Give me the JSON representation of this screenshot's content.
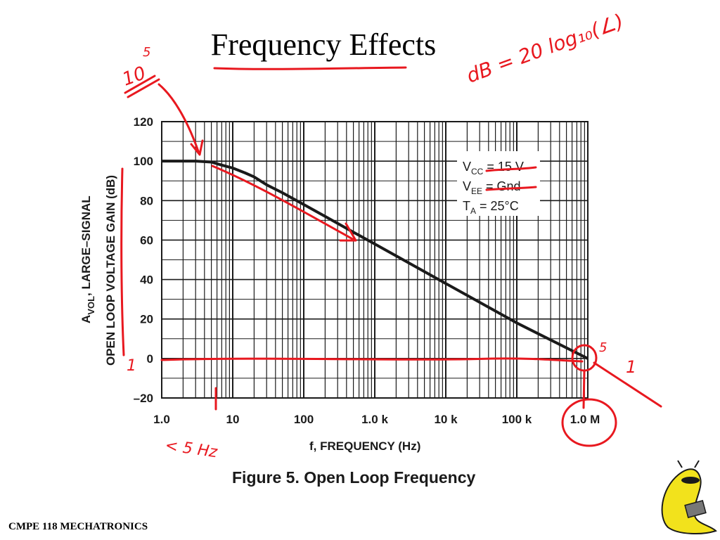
{
  "slide": {
    "title": "Frequency Effects",
    "footer": "CMPE 118 MECHATRONICS",
    "mascot_icon": "banana-slug-mascot-icon"
  },
  "chart_data": {
    "type": "line",
    "title": "Figure 5. Open Loop Frequency",
    "xlabel": "f, FREQUENCY (Hz)",
    "ylabel_line1_prefix": "A",
    "ylabel_line1_sub": "VOL",
    "ylabel_line1_rest": ", LARGE–SIGNAL",
    "ylabel_line2": "OPEN LOOP VOLTAGE GAIN (dB)",
    "x_scale": "log",
    "xlim": [
      1,
      1000000
    ],
    "ylim": [
      -20,
      120
    ],
    "grid": true,
    "x_ticks": [
      {
        "value": 1,
        "label": "1.0"
      },
      {
        "value": 10,
        "label": "10"
      },
      {
        "value": 100,
        "label": "100"
      },
      {
        "value": 1000,
        "label": "1.0 k"
      },
      {
        "value": 10000,
        "label": "10 k"
      },
      {
        "value": 100000,
        "label": "100 k"
      },
      {
        "value": 1000000,
        "label": "1.0 M"
      }
    ],
    "y_ticks": [
      {
        "value": 120,
        "label": "120"
      },
      {
        "value": 100,
        "label": "100"
      },
      {
        "value": 80,
        "label": "80"
      },
      {
        "value": 60,
        "label": "60"
      },
      {
        "value": 40,
        "label": "40"
      },
      {
        "value": 20,
        "label": "20"
      },
      {
        "value": 0,
        "label": "0"
      },
      {
        "value": -20,
        "label": "–20"
      }
    ],
    "series": [
      {
        "x": [
          1,
          2,
          3,
          5,
          7,
          10,
          15,
          20,
          30,
          50,
          100,
          200,
          500,
          1000,
          10000,
          100000,
          1000000
        ],
        "y": [
          100,
          100,
          100,
          99.5,
          98,
          96.5,
          94,
          92,
          88,
          84,
          78,
          72,
          64,
          58,
          38,
          18,
          0
        ],
        "color": "#1a1a1a"
      }
    ],
    "conditions": [
      {
        "main": "V",
        "sub": "CC",
        "rest": " = 15 V"
      },
      {
        "main": "V",
        "sub": "EE",
        "rest": " = Gnd"
      },
      {
        "main": "T",
        "sub": "A",
        "rest": " = 25°C"
      }
    ]
  },
  "annotations": {
    "db_formula": "dB = 20 log₁₀(∠)",
    "power_of_ten": "10",
    "exponent_5": "5",
    "label_one_left": "1",
    "label_one_right": "1",
    "exponent_5_right": "5",
    "freq_note": "< 5 Hz",
    "ink_color": "#e8181f"
  }
}
